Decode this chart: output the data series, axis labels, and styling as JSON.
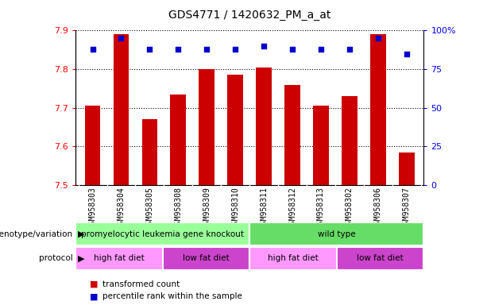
{
  "title": "GDS4771 / 1420632_PM_a_at",
  "samples": [
    "GSM958303",
    "GSM958304",
    "GSM958305",
    "GSM958308",
    "GSM958309",
    "GSM958310",
    "GSM958311",
    "GSM958312",
    "GSM958313",
    "GSM958302",
    "GSM958306",
    "GSM958307"
  ],
  "bar_values": [
    7.705,
    7.89,
    7.67,
    7.735,
    7.8,
    7.785,
    7.805,
    7.76,
    7.705,
    7.73,
    7.89,
    7.585
  ],
  "percentile_values": [
    88,
    95,
    88,
    88,
    88,
    88,
    90,
    88,
    88,
    88,
    95,
    85
  ],
  "bar_bottom": 7.5,
  "ylim": [
    7.5,
    7.9
  ],
  "yticks": [
    7.5,
    7.6,
    7.7,
    7.8,
    7.9
  ],
  "right_yticks": [
    0,
    25,
    50,
    75,
    100
  ],
  "right_ylim": [
    0,
    100
  ],
  "bar_color": "#cc0000",
  "dot_color": "#0000cc",
  "genotype_groups": [
    {
      "label": "promyelocytic leukemia gene knockout",
      "start": 0,
      "end": 6,
      "color": "#99ff99"
    },
    {
      "label": "wild type",
      "start": 6,
      "end": 12,
      "color": "#66dd66"
    }
  ],
  "protocol_groups": [
    {
      "label": "high fat diet",
      "start": 0,
      "end": 3,
      "color": "#ff99ff"
    },
    {
      "label": "low fat diet",
      "start": 3,
      "end": 6,
      "color": "#cc44cc"
    },
    {
      "label": "high fat diet",
      "start": 6,
      "end": 9,
      "color": "#ff99ff"
    },
    {
      "label": "low fat diet",
      "start": 9,
      "end": 12,
      "color": "#cc44cc"
    }
  ],
  "xtick_bg": "#dddddd",
  "plot_bg": "#ffffff"
}
